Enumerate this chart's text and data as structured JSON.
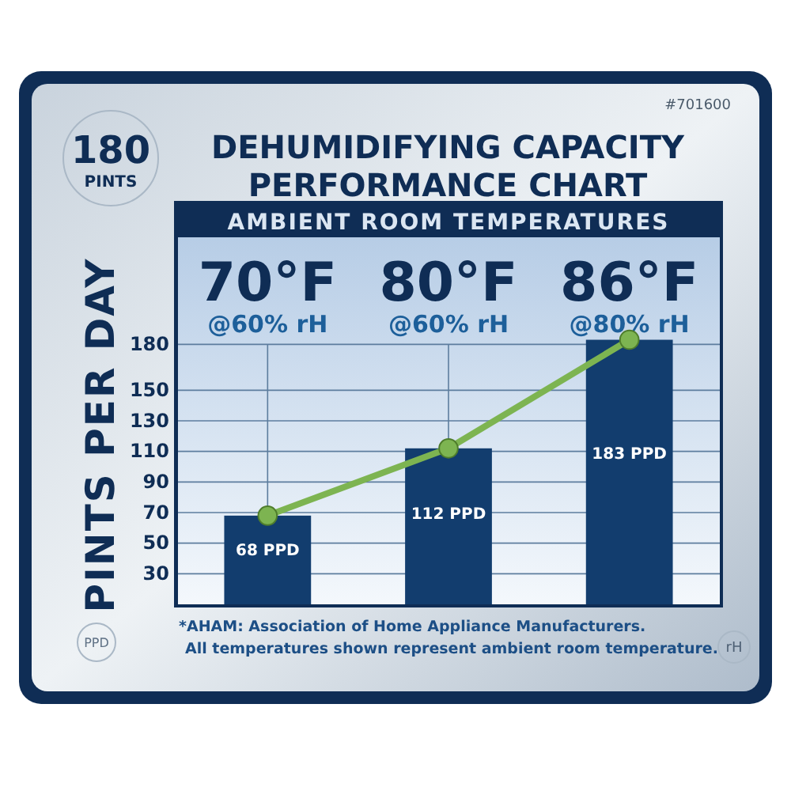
{
  "chart_data": {
    "type": "bar",
    "title": "DEHUMIDIFYING CAPACITY PERFORMANCE CHART",
    "xlabel": "AMBIENT ROOM TEMPERATURES",
    "ylabel": "PINTS PER DAY",
    "categories": [
      "70°F @60% rH",
      "80°F @60% rH",
      "86°F @80% rH"
    ],
    "series": [
      {
        "color": "#123d6e",
        "values": [
          68,
          112,
          183
        ],
        "value_labels": [
          "68 PPD",
          "112 PPD",
          "183 PPD"
        ]
      },
      {
        "type": "line",
        "color": "#7db451",
        "values": [
          68,
          112,
          183
        ],
        "marker": "circle"
      }
    ],
    "ylim": [
      10,
      250
    ],
    "yticks": [
      30,
      50,
      70,
      90,
      110,
      130,
      150,
      180
    ],
    "grid": true,
    "annotations": [
      "180 PINTS",
      "#701600",
      "PPD",
      "rH",
      "*AHAM: Association of Home Appliance Manufacturers.",
      "All temperatures shown represent ambient room temperature."
    ]
  }
}
